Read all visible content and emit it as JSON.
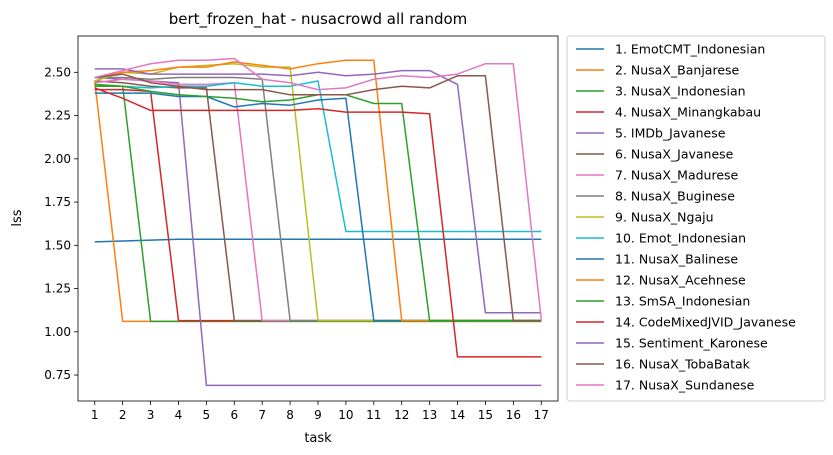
{
  "chart_data": {
    "type": "line",
    "title": "bert_frozen_hat - nusacrowd all random",
    "xlabel": "task",
    "ylabel": "lss",
    "x": [
      1,
      2,
      3,
      4,
      5,
      6,
      7,
      8,
      9,
      10,
      11,
      12,
      13,
      14,
      15,
      16,
      17
    ],
    "xlim": [
      0.4,
      17.6
    ],
    "ylim": [
      0.6,
      2.71
    ],
    "yticks": [
      0.75,
      1.0,
      1.25,
      1.5,
      1.75,
      2.0,
      2.25,
      2.5
    ],
    "ytick_labels": [
      "0.75",
      "1.00",
      "1.25",
      "1.50",
      "1.75",
      "2.00",
      "2.25",
      "2.50"
    ],
    "xtick_labels": [
      "1",
      "2",
      "3",
      "4",
      "5",
      "6",
      "7",
      "8",
      "9",
      "10",
      "11",
      "12",
      "13",
      "14",
      "15",
      "16",
      "17"
    ],
    "grid": false,
    "legend_position": "outside-right",
    "series": [
      {
        "name": "1. EmotCMT_Indonesian",
        "color": "#1f77b4",
        "values": [
          1.52,
          1.525,
          1.53,
          1.535,
          1.535,
          1.535,
          1.535,
          1.535,
          1.535,
          1.535,
          1.535,
          1.535,
          1.535,
          1.535,
          1.535,
          1.535,
          1.535
        ]
      },
      {
        "name": "2. NusaX_Banjarese",
        "color": "#ff7f0e",
        "values": [
          2.45,
          1.06,
          1.06,
          1.06,
          1.06,
          1.06,
          1.06,
          1.06,
          1.06,
          1.06,
          1.06,
          1.06,
          1.06,
          1.06,
          1.06,
          1.06,
          1.06
        ]
      },
      {
        "name": "3. NusaX_Indonesian",
        "color": "#2ca02c",
        "values": [
          2.43,
          2.42,
          1.06,
          1.06,
          1.06,
          1.06,
          1.06,
          1.06,
          1.06,
          1.06,
          1.06,
          1.06,
          1.06,
          1.06,
          1.06,
          1.06,
          1.06
        ]
      },
      {
        "name": "4. NusaX_Minangkabau",
        "color": "#d62728",
        "values": [
          2.4,
          2.4,
          2.39,
          1.065,
          1.065,
          1.065,
          1.065,
          1.065,
          1.065,
          1.065,
          1.065,
          1.065,
          1.065,
          1.065,
          1.065,
          1.065,
          1.065
        ]
      },
      {
        "name": "5. IMDb_Javanese",
        "color": "#9467bd",
        "values": [
          2.47,
          2.46,
          2.45,
          2.44,
          0.69,
          0.69,
          0.69,
          0.69,
          0.69,
          0.69,
          0.69,
          0.69,
          0.69,
          0.69,
          0.69,
          0.69,
          0.69
        ]
      },
      {
        "name": "6. NusaX_Javanese",
        "color": "#8c564b",
        "values": [
          2.45,
          2.44,
          2.42,
          2.41,
          2.41,
          1.065,
          1.065,
          1.065,
          1.065,
          1.065,
          1.065,
          1.065,
          1.065,
          1.065,
          1.065,
          1.065,
          1.065
        ]
      },
      {
        "name": "7. NusaX_Madurese",
        "color": "#e377c2",
        "values": [
          2.44,
          2.46,
          2.45,
          2.43,
          2.43,
          2.44,
          1.065,
          1.065,
          1.065,
          1.065,
          1.065,
          1.065,
          1.065,
          1.065,
          1.065,
          1.065,
          1.065
        ]
      },
      {
        "name": "8. NusaX_Buginese",
        "color": "#7f7f7f",
        "values": [
          2.47,
          2.47,
          2.46,
          2.47,
          2.47,
          2.47,
          2.46,
          1.065,
          1.065,
          1.065,
          1.065,
          1.065,
          1.065,
          1.065,
          1.065,
          1.065,
          1.065
        ]
      },
      {
        "name": "9. NusaX_Ngaju",
        "color": "#bcbd22",
        "values": [
          2.45,
          2.5,
          2.49,
          2.53,
          2.54,
          2.55,
          2.53,
          2.53,
          1.065,
          1.065,
          1.065,
          1.065,
          1.065,
          1.065,
          1.065,
          1.065,
          1.065
        ]
      },
      {
        "name": "10. Emot_Indonesian",
        "color": "#17becf",
        "values": [
          2.42,
          2.42,
          2.41,
          2.42,
          2.42,
          2.44,
          2.42,
          2.42,
          2.45,
          1.58,
          1.58,
          1.58,
          1.58,
          1.58,
          1.58,
          1.58,
          1.58
        ]
      },
      {
        "name": "11. NusaX_Balinese",
        "color": "#1f77b4",
        "values": [
          2.38,
          2.38,
          2.38,
          2.36,
          2.36,
          2.3,
          2.32,
          2.31,
          2.34,
          2.35,
          1.065,
          1.065,
          1.065,
          1.065,
          1.065,
          1.065,
          1.065
        ]
      },
      {
        "name": "12. NusaX_Acehnese",
        "color": "#ff7f0e",
        "values": [
          2.47,
          2.5,
          2.51,
          2.53,
          2.53,
          2.56,
          2.54,
          2.52,
          2.55,
          2.57,
          2.57,
          1.065,
          1.065,
          1.065,
          1.065,
          1.065,
          1.065
        ]
      },
      {
        "name": "13. SmSA_Indonesian",
        "color": "#2ca02c",
        "values": [
          2.42,
          2.42,
          2.39,
          2.37,
          2.36,
          2.35,
          2.33,
          2.34,
          2.37,
          2.37,
          2.32,
          2.32,
          1.065,
          1.065,
          1.065,
          1.065,
          1.065
        ]
      },
      {
        "name": "14. CodeMixedJVID_Javanese",
        "color": "#d62728",
        "values": [
          2.41,
          2.35,
          2.28,
          2.28,
          2.28,
          2.28,
          2.28,
          2.28,
          2.29,
          2.27,
          2.27,
          2.27,
          2.26,
          0.855,
          0.855,
          0.855,
          0.855
        ]
      },
      {
        "name": "15. Sentiment_Karonese",
        "color": "#9467bd",
        "values": [
          2.52,
          2.52,
          2.49,
          2.49,
          2.49,
          2.49,
          2.49,
          2.48,
          2.5,
          2.48,
          2.49,
          2.51,
          2.51,
          2.43,
          1.11,
          1.11,
          1.11
        ]
      },
      {
        "name": "16. NusaX_TobaBatak",
        "color": "#8c564b",
        "values": [
          2.47,
          2.49,
          2.44,
          2.42,
          2.4,
          2.4,
          2.4,
          2.37,
          2.37,
          2.37,
          2.4,
          2.42,
          2.41,
          2.48,
          2.48,
          1.065,
          1.065
        ]
      },
      {
        "name": "17. NusaX_Sundanese",
        "color": "#e377c2",
        "values": [
          2.47,
          2.51,
          2.55,
          2.57,
          2.57,
          2.58,
          2.46,
          2.44,
          2.4,
          2.41,
          2.46,
          2.48,
          2.47,
          2.49,
          2.55,
          2.55,
          1.07
        ]
      }
    ]
  }
}
